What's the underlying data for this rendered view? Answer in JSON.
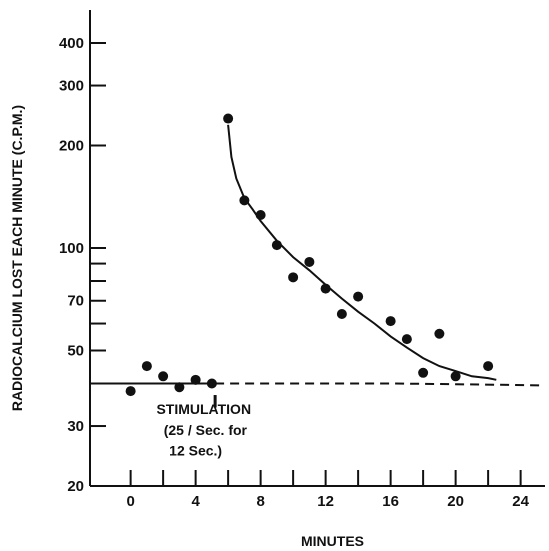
{
  "chart_data": {
    "type": "scatter",
    "xlabel": "MINUTES",
    "ylabel": "RADIOCALCIUM LOST EACH MINUTE (C.P.M.)",
    "xlim": [
      -2.5,
      25.5
    ],
    "ylim": [
      20,
      500
    ],
    "y_scale": "log",
    "grid": false,
    "x_ticks": [
      0,
      4,
      8,
      12,
      16,
      20,
      24
    ],
    "x_tick_labels": [
      "0",
      "4",
      "8",
      "12",
      "16",
      "20",
      "24"
    ],
    "x_minor_ticks": [
      2,
      6,
      10,
      14,
      18,
      22
    ],
    "y_ticks": [
      20,
      30,
      50,
      70,
      100,
      200,
      300,
      400
    ],
    "y_tick_labels": [
      "20",
      "30",
      "50",
      "70",
      "100",
      "200",
      "300",
      "400"
    ],
    "y_minor_ticks": [
      40,
      60,
      80,
      90
    ],
    "series": [
      {
        "name": "",
        "x": [
          0,
          1,
          2,
          3,
          4,
          5,
          6,
          7,
          8,
          9,
          10,
          11,
          12,
          13,
          14,
          16,
          17,
          18,
          19,
          20,
          22
        ],
        "y": [
          38,
          45,
          42,
          39,
          41,
          40,
          240,
          138,
          125,
          102,
          82,
          91,
          76,
          64,
          72,
          61,
          54,
          43,
          56,
          42,
          45
        ]
      }
    ],
    "lines": [
      {
        "style": "solid",
        "x": [
          -2.5,
          0,
          2,
          4,
          5.2
        ],
        "y": [
          40,
          40,
          40,
          40,
          40
        ]
      },
      {
        "style": "dashed",
        "x": [
          5.2,
          8,
          12,
          16,
          20,
          25.5
        ],
        "y": [
          40,
          40,
          40,
          40,
          39.8,
          39.5
        ]
      },
      {
        "style": "solid",
        "x": [
          6,
          6.2,
          6.5,
          7,
          7.5,
          8,
          9,
          10,
          11,
          12,
          13,
          14,
          15,
          16,
          17,
          18,
          19,
          20,
          21,
          22,
          22.5
        ],
        "y": [
          230,
          185,
          160,
          140,
          130,
          120,
          105,
          94,
          86,
          78,
          71,
          65,
          60,
          55,
          51,
          47.5,
          45,
          43.5,
          42,
          41.5,
          41
        ]
      }
    ],
    "annotations": [
      {
        "text": "STIMULATION",
        "x": 4.5,
        "y": 32.5
      },
      {
        "text": "(25 / Sec. for",
        "x": 4.6,
        "y": 28.2
      },
      {
        "text": "12 Sec.)",
        "x": 4.0,
        "y": 24.6
      }
    ],
    "stimulation_marker_x": 5.2
  }
}
